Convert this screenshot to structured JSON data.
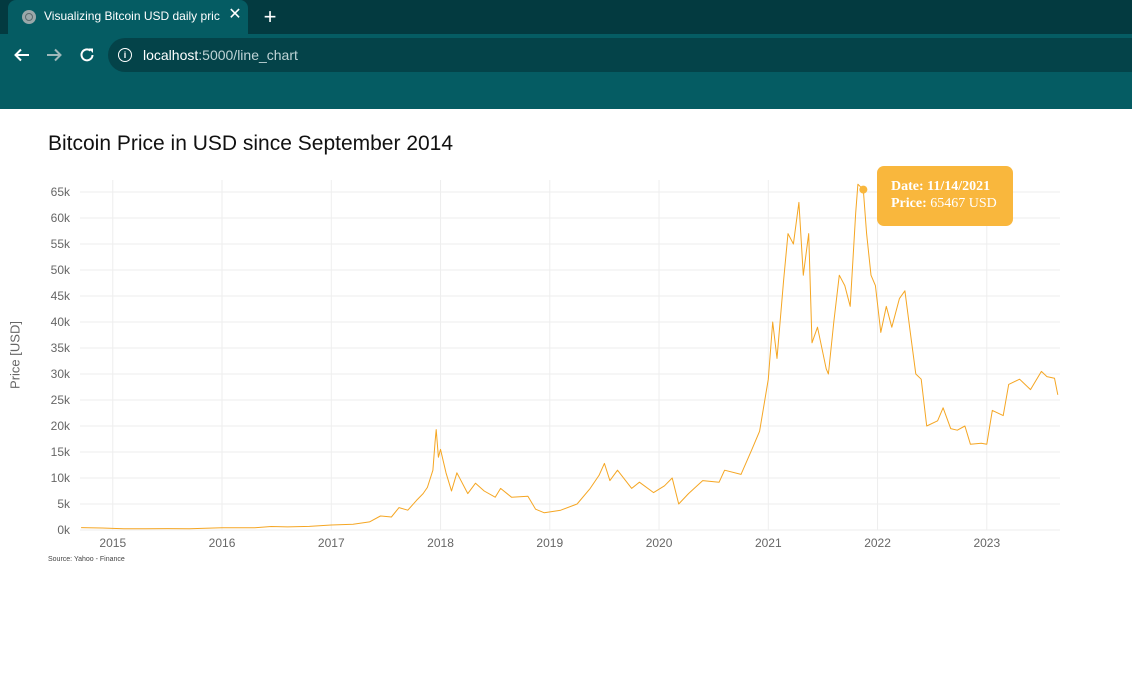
{
  "browser": {
    "tab_title": "Visualizing Bitcoin USD daily pric",
    "url_host": "localhost",
    "url_path": ":5000/line_chart"
  },
  "page": {
    "source": "Source: Yahoo - Finance"
  },
  "colors": {
    "line": "#f5a623",
    "tooltip_bg": "#f9b73d",
    "chrome_dark": "#033a40",
    "chrome": "#055c63"
  },
  "tooltip": {
    "date_label": "Date:",
    "date_value": "11/14/2021",
    "price_label": "Price:",
    "price_value": "65467 USD"
  },
  "chart_data": {
    "type": "line",
    "title": "Bitcoin Price in USD since September 2014",
    "ylabel": "Price [USD]",
    "xlabel": "",
    "grid": true,
    "xlim": [
      2014.7,
      2023.67
    ],
    "ylim": [
      0,
      65000
    ],
    "y_ticks": [
      "0k",
      "5k",
      "10k",
      "15k",
      "20k",
      "25k",
      "30k",
      "35k",
      "40k",
      "45k",
      "50k",
      "55k",
      "60k",
      "65k"
    ],
    "x_ticks": [
      "2015",
      "2016",
      "2017",
      "2018",
      "2019",
      "2020",
      "2021",
      "2022",
      "2023"
    ],
    "series": [
      {
        "values": [
          [
            2014.71,
            460
          ],
          [
            2014.9,
            390
          ],
          [
            2015.0,
            315
          ],
          [
            2015.1,
            240
          ],
          [
            2015.3,
            230
          ],
          [
            2015.5,
            260
          ],
          [
            2015.7,
            235
          ],
          [
            2015.85,
            330
          ],
          [
            2016.0,
            430
          ],
          [
            2016.3,
            420
          ],
          [
            2016.45,
            680
          ],
          [
            2016.6,
            600
          ],
          [
            2016.8,
            700
          ],
          [
            2017.0,
            960
          ],
          [
            2017.2,
            1100
          ],
          [
            2017.35,
            1550
          ],
          [
            2017.45,
            2700
          ],
          [
            2017.55,
            2500
          ],
          [
            2017.62,
            4300
          ],
          [
            2017.7,
            3800
          ],
          [
            2017.78,
            5700
          ],
          [
            2017.84,
            7000
          ],
          [
            2017.88,
            8200
          ],
          [
            2017.93,
            11500
          ],
          [
            2017.95,
            17000
          ],
          [
            2017.96,
            19300
          ],
          [
            2017.98,
            14000
          ],
          [
            2018.0,
            15500
          ],
          [
            2018.05,
            11000
          ],
          [
            2018.1,
            7500
          ],
          [
            2018.15,
            11000
          ],
          [
            2018.25,
            7000
          ],
          [
            2018.32,
            9000
          ],
          [
            2018.4,
            7500
          ],
          [
            2018.5,
            6300
          ],
          [
            2018.55,
            8000
          ],
          [
            2018.65,
            6300
          ],
          [
            2018.8,
            6500
          ],
          [
            2018.87,
            4000
          ],
          [
            2018.95,
            3300
          ],
          [
            2019.1,
            3800
          ],
          [
            2019.25,
            5000
          ],
          [
            2019.37,
            8000
          ],
          [
            2019.45,
            10500
          ],
          [
            2019.5,
            12800
          ],
          [
            2019.55,
            9500
          ],
          [
            2019.62,
            11500
          ],
          [
            2019.75,
            8000
          ],
          [
            2019.82,
            9200
          ],
          [
            2019.95,
            7200
          ],
          [
            2020.05,
            8500
          ],
          [
            2020.12,
            10000
          ],
          [
            2020.18,
            5000
          ],
          [
            2020.27,
            7000
          ],
          [
            2020.4,
            9500
          ],
          [
            2020.55,
            9200
          ],
          [
            2020.6,
            11500
          ],
          [
            2020.75,
            10700
          ],
          [
            2020.85,
            15500
          ],
          [
            2020.92,
            19000
          ],
          [
            2021.0,
            29000
          ],
          [
            2021.04,
            40000
          ],
          [
            2021.08,
            33000
          ],
          [
            2021.14,
            48000
          ],
          [
            2021.18,
            57000
          ],
          [
            2021.23,
            55000
          ],
          [
            2021.28,
            63000
          ],
          [
            2021.32,
            49000
          ],
          [
            2021.37,
            57000
          ],
          [
            2021.4,
            36000
          ],
          [
            2021.45,
            39000
          ],
          [
            2021.53,
            31000
          ],
          [
            2021.55,
            30000
          ],
          [
            2021.6,
            40000
          ],
          [
            2021.65,
            49000
          ],
          [
            2021.7,
            47000
          ],
          [
            2021.75,
            43000
          ],
          [
            2021.8,
            61000
          ],
          [
            2021.82,
            66500
          ],
          [
            2021.87,
            65467
          ],
          [
            2021.9,
            57000
          ],
          [
            2021.94,
            49000
          ],
          [
            2021.98,
            47000
          ],
          [
            2022.03,
            38000
          ],
          [
            2022.08,
            43000
          ],
          [
            2022.13,
            39000
          ],
          [
            2022.2,
            44500
          ],
          [
            2022.25,
            46000
          ],
          [
            2022.3,
            38000
          ],
          [
            2022.35,
            30000
          ],
          [
            2022.4,
            29000
          ],
          [
            2022.45,
            20000
          ],
          [
            2022.55,
            21000
          ],
          [
            2022.6,
            23500
          ],
          [
            2022.67,
            19500
          ],
          [
            2022.73,
            19200
          ],
          [
            2022.8,
            20000
          ],
          [
            2022.85,
            16500
          ],
          [
            2022.95,
            16700
          ],
          [
            2023.0,
            16500
          ],
          [
            2023.05,
            23000
          ],
          [
            2023.15,
            22000
          ],
          [
            2023.2,
            28000
          ],
          [
            2023.3,
            29000
          ],
          [
            2023.4,
            27000
          ],
          [
            2023.5,
            30500
          ],
          [
            2023.55,
            29500
          ],
          [
            2023.62,
            29200
          ],
          [
            2023.65,
            26000
          ]
        ]
      }
    ],
    "highlight": {
      "x": 2021.87,
      "y": 65467
    }
  }
}
